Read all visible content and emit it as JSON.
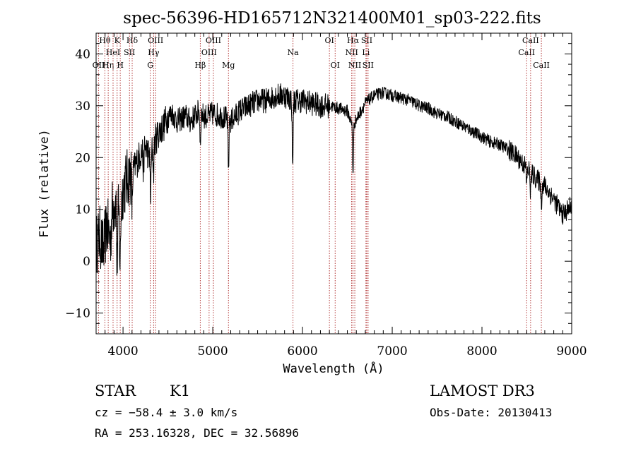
{
  "chart_data": {
    "type": "line",
    "title": "spec-56396-HD165712N321400M01_sp03-222.fits",
    "xlabel": "Wavelength (Å)",
    "ylabel": "Flux (relative)",
    "xlim": [
      3700,
      9000
    ],
    "ylim": [
      -14,
      44
    ],
    "xticks": [
      "4000",
      "5000",
      "6000",
      "7000",
      "8000",
      "9000"
    ],
    "xtick_values": [
      4000,
      5000,
      6000,
      7000,
      8000,
      9000
    ],
    "yticks": [
      "−10",
      "0",
      "10",
      "20",
      "30",
      "40"
    ],
    "ytick_values": [
      -10,
      0,
      10,
      20,
      30,
      40
    ],
    "grid": false,
    "line_color": "#000000",
    "marker_color": "#b03030",
    "spectrum_anchors": [
      [
        3700,
        3
      ],
      [
        3740,
        5
      ],
      [
        3780,
        2
      ],
      [
        3820,
        7
      ],
      [
        3860,
        4
      ],
      [
        3880,
        10
      ],
      [
        3920,
        12
      ],
      [
        3960,
        8
      ],
      [
        4000,
        14
      ],
      [
        4050,
        16
      ],
      [
        4100,
        17
      ],
      [
        4150,
        19
      ],
      [
        4200,
        21
      ],
      [
        4250,
        22
      ],
      [
        4300,
        20
      ],
      [
        4350,
        23
      ],
      [
        4400,
        25
      ],
      [
        4450,
        26
      ],
      [
        4500,
        28
      ],
      [
        4550,
        28.5
      ],
      [
        4600,
        27
      ],
      [
        4650,
        27.5
      ],
      [
        4700,
        28
      ],
      [
        4750,
        27
      ],
      [
        4800,
        28
      ],
      [
        4850,
        29
      ],
      [
        4900,
        28
      ],
      [
        4950,
        28
      ],
      [
        5000,
        28.5
      ],
      [
        5100,
        28
      ],
      [
        5200,
        27
      ],
      [
        5300,
        29
      ],
      [
        5400,
        30
      ],
      [
        5500,
        31
      ],
      [
        5600,
        31
      ],
      [
        5700,
        32
      ],
      [
        5800,
        32
      ],
      [
        5900,
        31
      ],
      [
        6000,
        31
      ],
      [
        6100,
        30.5
      ],
      [
        6200,
        30
      ],
      [
        6300,
        30
      ],
      [
        6400,
        29.5
      ],
      [
        6500,
        29
      ],
      [
        6560,
        26
      ],
      [
        6620,
        28
      ],
      [
        6700,
        30.5
      ],
      [
        6800,
        32
      ],
      [
        6900,
        32.5
      ],
      [
        7000,
        32
      ],
      [
        7100,
        31.5
      ],
      [
        7200,
        31
      ],
      [
        7300,
        30
      ],
      [
        7400,
        29.5
      ],
      [
        7500,
        28.5
      ],
      [
        7600,
        28
      ],
      [
        7700,
        27
      ],
      [
        7800,
        26
      ],
      [
        7900,
        25
      ],
      [
        8000,
        24
      ],
      [
        8100,
        23
      ],
      [
        8200,
        22.5
      ],
      [
        8300,
        21.5
      ],
      [
        8400,
        20
      ],
      [
        8500,
        18
      ],
      [
        8600,
        16
      ],
      [
        8700,
        14.5
      ],
      [
        8800,
        12
      ],
      [
        8900,
        9
      ],
      [
        8960,
        10
      ],
      [
        9000,
        11
      ]
    ],
    "absorption_dips": [
      [
        3933,
        12
      ],
      [
        3968,
        10
      ],
      [
        4101,
        6
      ],
      [
        4227,
        4
      ],
      [
        4308,
        8
      ],
      [
        4340,
        5
      ],
      [
        4861,
        6
      ],
      [
        5175,
        10
      ],
      [
        5890,
        13
      ],
      [
        6563,
        9
      ],
      [
        8498,
        3
      ],
      [
        8542,
        4
      ],
      [
        8662,
        4
      ]
    ],
    "line_markers": [
      {
        "wavelength": 3727,
        "labels": [
          {
            "row": 2,
            "text": "OII"
          }
        ]
      },
      {
        "wavelength": 3798,
        "labels": [
          {
            "row": 0,
            "text": "Hθ"
          }
        ]
      },
      {
        "wavelength": 3835,
        "labels": [
          {
            "row": 2,
            "text": "Hη"
          }
        ]
      },
      {
        "wavelength": 3889,
        "labels": [
          {
            "row": 1,
            "text": "HeI"
          }
        ]
      },
      {
        "wavelength": 3934,
        "labels": [
          {
            "row": 0,
            "text": "K"
          }
        ]
      },
      {
        "wavelength": 3969,
        "labels": [
          {
            "row": 2,
            "text": "H"
          }
        ]
      },
      {
        "wavelength": 4072,
        "labels": [
          {
            "row": 1,
            "text": "SII"
          }
        ]
      },
      {
        "wavelength": 4102,
        "labels": [
          {
            "row": 0,
            "text": "Hδ"
          }
        ]
      },
      {
        "wavelength": 4304,
        "labels": [
          {
            "row": 2,
            "text": "G"
          }
        ]
      },
      {
        "wavelength": 4341,
        "labels": [
          {
            "row": 1,
            "text": "Hγ"
          }
        ]
      },
      {
        "wavelength": 4363,
        "labels": [
          {
            "row": 0,
            "text": "OIII"
          }
        ]
      },
      {
        "wavelength": 4861,
        "labels": [
          {
            "row": 2,
            "text": "Hβ"
          }
        ]
      },
      {
        "wavelength": 4959,
        "labels": [
          {
            "row": 1,
            "text": "OIII"
          }
        ]
      },
      {
        "wavelength": 5007,
        "labels": [
          {
            "row": 0,
            "text": "OIII"
          }
        ]
      },
      {
        "wavelength": 5175,
        "labels": [
          {
            "row": 2,
            "text": "Mg"
          }
        ]
      },
      {
        "wavelength": 5894,
        "labels": [
          {
            "row": 1,
            "text": "Na"
          }
        ]
      },
      {
        "wavelength": 6300,
        "labels": [
          {
            "row": 0,
            "text": "OI"
          }
        ]
      },
      {
        "wavelength": 6364,
        "labels": [
          {
            "row": 2,
            "text": "OI"
          }
        ]
      },
      {
        "wavelength": 6548,
        "labels": [
          {
            "row": 1,
            "text": "NII"
          }
        ]
      },
      {
        "wavelength": 6563,
        "labels": [
          {
            "row": 0,
            "text": "Hα"
          }
        ]
      },
      {
        "wavelength": 6583,
        "labels": [
          {
            "row": 2,
            "text": "NII"
          }
        ]
      },
      {
        "wavelength": 6707,
        "labels": [
          {
            "row": 1,
            "text": "Li"
          }
        ]
      },
      {
        "wavelength": 6716,
        "labels": [
          {
            "row": 0,
            "text": "SII"
          }
        ]
      },
      {
        "wavelength": 6731,
        "labels": [
          {
            "row": 2,
            "text": "SII"
          }
        ]
      },
      {
        "wavelength": 8498,
        "labels": [
          {
            "row": 1,
            "text": "CaII"
          }
        ]
      },
      {
        "wavelength": 8542,
        "labels": [
          {
            "row": 0,
            "text": "CaII"
          }
        ]
      },
      {
        "wavelength": 8662,
        "labels": [
          {
            "row": 2,
            "text": "CaII"
          }
        ]
      }
    ]
  },
  "info": {
    "object_class": "STAR",
    "subclass": "K1",
    "cz_line": "cz = −58.4 ± 3.0 km/s",
    "coord_line": "RA = 253.16328, DEC =  32.56896",
    "survey": "LAMOST DR3",
    "obs_date": "Obs-Date: 20130413"
  }
}
